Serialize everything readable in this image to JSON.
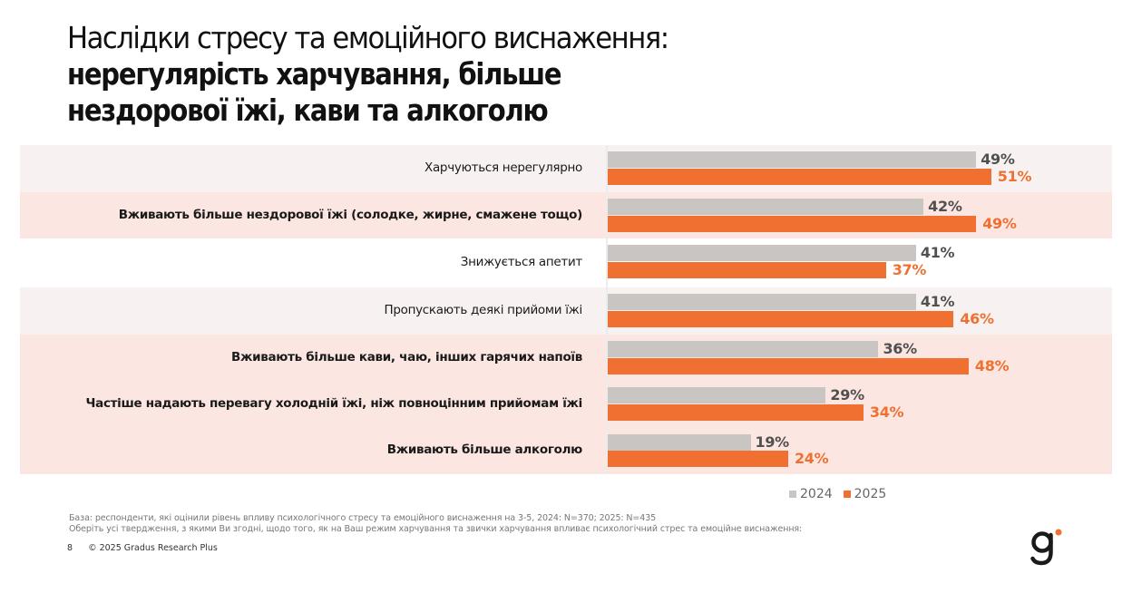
{
  "title": {
    "line1": "Наслідки стресу та емоційного виснаження:",
    "line2": "нерегулярість харчування, більше",
    "line3": "нездорової їжі, кави та алкоголю"
  },
  "colors": {
    "y2024": "#c9c5c2",
    "y2025": "#ef7030",
    "band_gray": "#f7f2f1",
    "band_pink": "#fbe6e1"
  },
  "chart_data": {
    "type": "bar",
    "orientation": "horizontal",
    "title": "Наслідки стресу та емоційного виснаження: нерегулярість харчування, більше нездорової їжі, кави та алкоголю",
    "unit": "%",
    "xlim": [
      0,
      100
    ],
    "categories": [
      "Харчуються нерегулярно",
      "Вживають більше нездорової їжі (солодке, жирне, смажене тощо)",
      "Знижується апетит",
      "Пропускають деякі прийоми їжі",
      "Вживають більше кави, чаю, інших гарячих напоїв",
      "Частіше надають перевагу холодній їжі, ніж повноцінним прийомам їжі",
      "Вживають більше алкоголю"
    ],
    "bold": [
      false,
      true,
      false,
      false,
      true,
      true,
      true
    ],
    "series": [
      {
        "name": "2024",
        "values": [
          49,
          42,
          41,
          41,
          36,
          29,
          19
        ],
        "labels": [
          "49%",
          "42%",
          "41%",
          "41%",
          "36%",
          "29%",
          "19%"
        ]
      },
      {
        "name": "2025",
        "values": [
          51,
          49,
          37,
          46,
          48,
          34,
          24
        ],
        "labels": [
          "51%",
          "49%",
          "37%",
          "46%",
          "48%",
          "34%",
          "24%"
        ]
      }
    ],
    "legend": {
      "position": "bottom-right",
      "entries": [
        "2024",
        "2025"
      ]
    }
  },
  "notes": {
    "base": "База: респонденти, які оцінили рівень впливу психологічного стресу та емоційного виснаження на 3-5, 2024: N=370; 2025: N=435",
    "question": "Оберіть усі твердження, з якими Ви згодні, щодо того, як на Ваш режим харчування та звички харчування впливає психологічний стрес та емоційне виснаження:"
  },
  "footer": {
    "page": "8",
    "copyright": "© 2025 Gradus Research Plus"
  },
  "logo": {
    "text": "g",
    "icon": "gradus-logo-icon"
  }
}
